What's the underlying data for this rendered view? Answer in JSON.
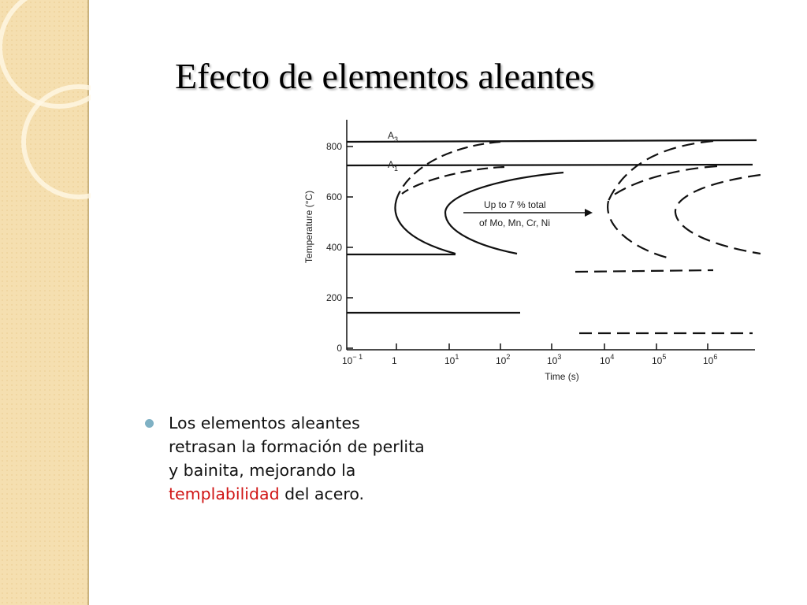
{
  "slide": {
    "title": "Efecto de elementos aleantes",
    "figure": {
      "y_axis_label": "Temperature (°C)",
      "x_axis_label": "Time (s)",
      "y_ticks": [
        "0",
        "200",
        "400",
        "600",
        "800"
      ],
      "x_ticks": [
        {
          "base": "10",
          "exp": "− 1"
        },
        {
          "base": "1"
        },
        {
          "base": "10",
          "exp": "1"
        },
        {
          "base": "10",
          "exp": "2"
        },
        {
          "base": "10",
          "exp": "3"
        },
        {
          "base": "10",
          "exp": "4"
        },
        {
          "base": "10",
          "exp": "5"
        },
        {
          "base": "10",
          "exp": "6"
        }
      ],
      "lines": [
        {
          "base": "A",
          "sub": "3"
        },
        {
          "base": "A",
          "sub": "1"
        }
      ],
      "annotation": [
        "Up to 7 % total",
        "of Mo, Mn, Cr, Ni"
      ]
    },
    "bullet": [
      "Los elementos aleantes retrasan la formación de perlita y bainita, mejorando la ",
      "templabilidad",
      " del acero."
    ]
  }
}
